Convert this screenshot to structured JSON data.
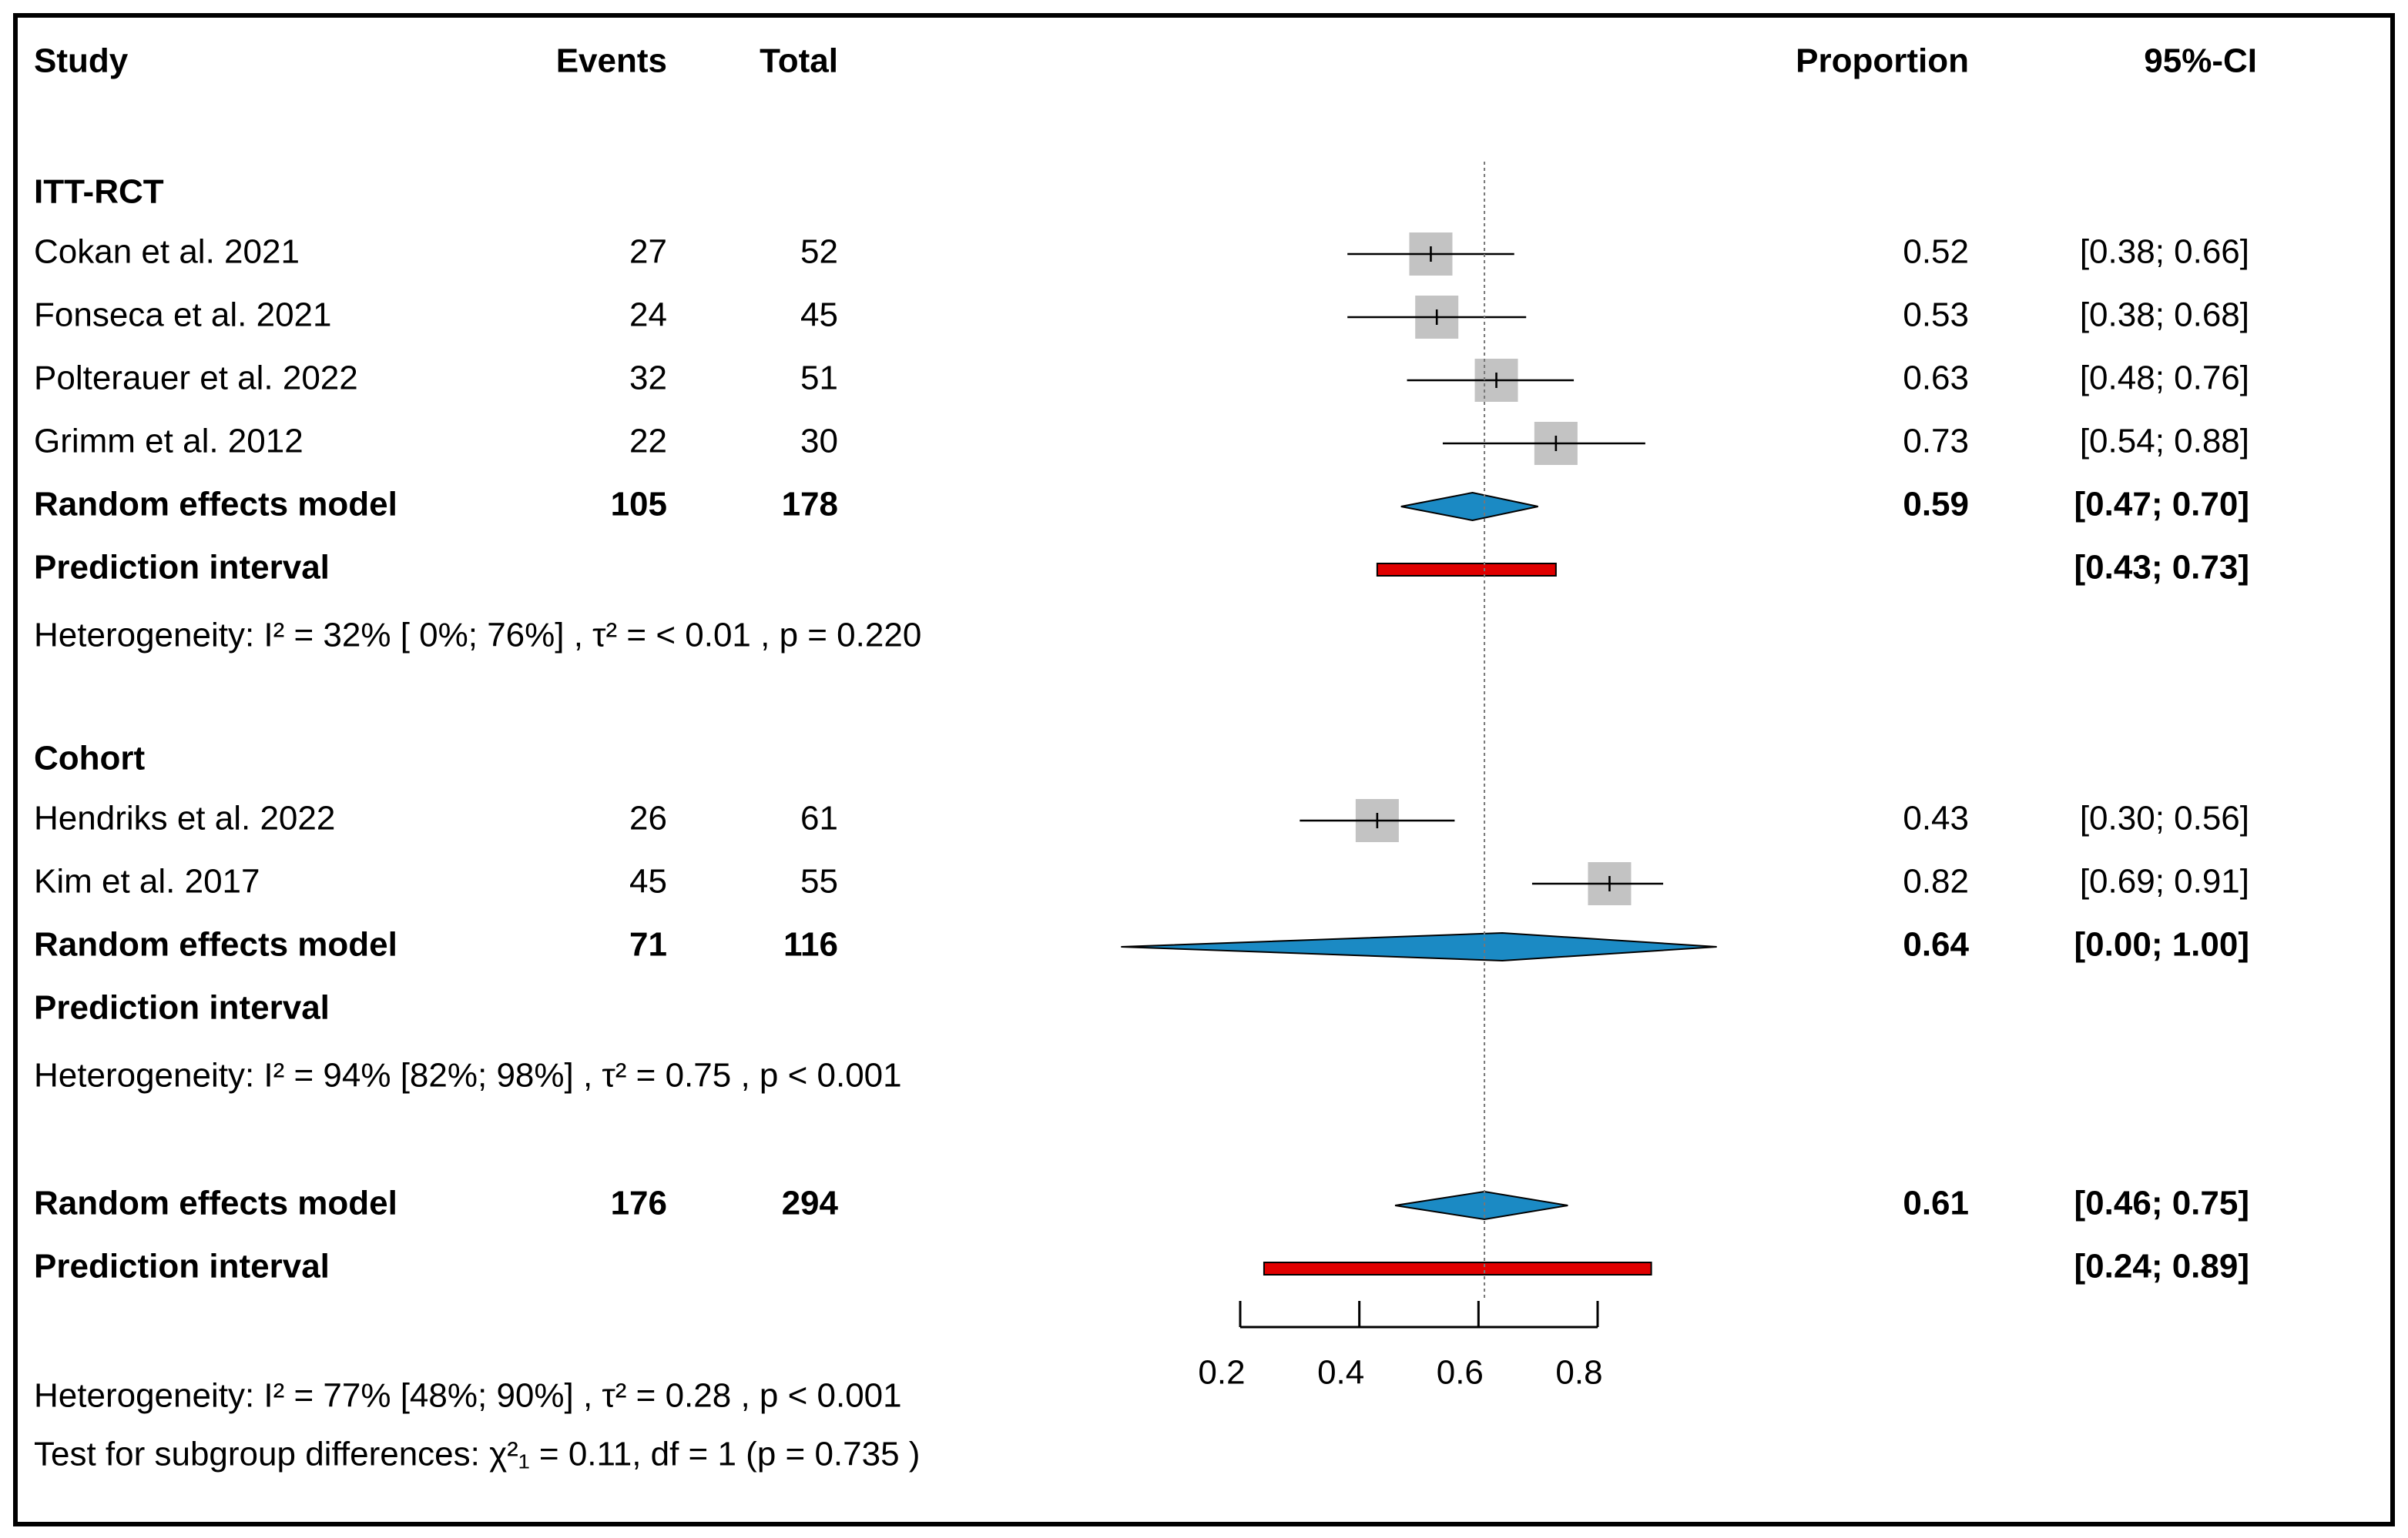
{
  "chart_data": {
    "type": "forest",
    "headers": {
      "study": "Study",
      "events": "Events",
      "total": "Total",
      "proportion": "Proportion",
      "ci": "95%-CI"
    },
    "xlim": [
      0.2,
      0.8
    ],
    "xticks": [
      0.2,
      0.4,
      0.6,
      0.8
    ],
    "square_color": "#c3c3c3",
    "diamond_color": "#1b8ac4",
    "prediction_color": "#e00000",
    "groups": [
      {
        "name": "ITT-RCT",
        "studies": [
          {
            "name": "Cokan et al. 2021",
            "events": 27,
            "total": 52,
            "proportion": 0.52,
            "ci_low": 0.38,
            "ci_high": 0.66,
            "ci_label": "[0.38; 0.66]"
          },
          {
            "name": "Fonseca et al. 2021",
            "events": 24,
            "total": 45,
            "proportion": 0.53,
            "ci_low": 0.38,
            "ci_high": 0.68,
            "ci_label": "[0.38; 0.68]"
          },
          {
            "name": "Polterauer et al. 2022",
            "events": 32,
            "total": 51,
            "proportion": 0.63,
            "ci_low": 0.48,
            "ci_high": 0.76,
            "ci_label": "[0.48; 0.76]"
          },
          {
            "name": "Grimm  et al. 2012",
            "events": 22,
            "total": 30,
            "proportion": 0.73,
            "ci_low": 0.54,
            "ci_high": 0.88,
            "ci_label": "[0.54; 0.88]"
          }
        ],
        "model": {
          "label": "Random effects model",
          "events": 105,
          "total": 178,
          "proportion": 0.59,
          "ci_low": 0.47,
          "ci_high": 0.7,
          "ci_label": "[0.47; 0.70]"
        },
        "prediction": {
          "label": "Prediction interval",
          "low": 0.43,
          "high": 0.73,
          "ci_label": "[0.43; 0.73]"
        },
        "heterogeneity": "Heterogeneity:  I² = 32% [ 0%; 76%]  ,  τ² = < 0.01  , p = 0.220"
      },
      {
        "name": "Cohort",
        "studies": [
          {
            "name": "Hendriks et al. 2022",
            "events": 26,
            "total": 61,
            "proportion": 0.43,
            "ci_low": 0.3,
            "ci_high": 0.56,
            "ci_label": "[0.30; 0.56]"
          },
          {
            "name": "Kim et al. 2017",
            "events": 45,
            "total": 55,
            "proportion": 0.82,
            "ci_low": 0.69,
            "ci_high": 0.91,
            "ci_label": "[0.69; 0.91]"
          }
        ],
        "model": {
          "label": "Random effects model",
          "events": 71,
          "total": 116,
          "proportion": 0.64,
          "ci_low": 0,
          "ci_high": 1,
          "ci_label": "[0.00; 1.00]"
        },
        "prediction": {
          "label": "Prediction interval"
        },
        "heterogeneity": "Heterogeneity:  I² = 94% [82%; 98%]   ,  τ² = 0.75 , p < 0.001"
      }
    ],
    "overall": {
      "model": {
        "label": "Random effects model",
        "events": 176,
        "total": 294,
        "proportion": 0.61,
        "ci_low": 0.46,
        "ci_high": 0.75,
        "ci_label": "[0.46; 0.75]"
      },
      "prediction": {
        "label": "Prediction interval",
        "low": 0.24,
        "high": 0.89,
        "ci_label": "[0.24; 0.89]"
      },
      "heterogeneity": "Heterogeneity:  I² = 77% [48%; 90%]   , τ² = 0.28  , p < 0.001",
      "subgroup_test": "Test for subgroup differences:   χ²₁ = 0.11, df = 1   (p = 0.735  )"
    }
  }
}
